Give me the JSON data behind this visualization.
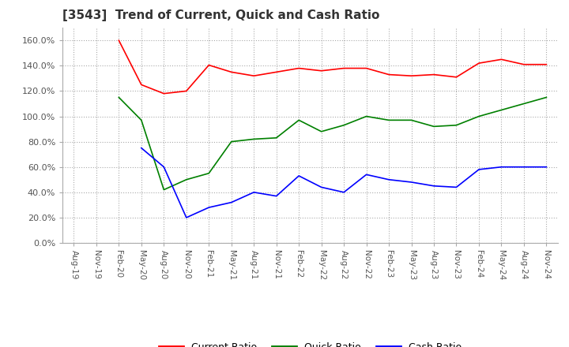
{
  "title": "[3543]  Trend of Current, Quick and Cash Ratio",
  "x_labels": [
    "Aug-19",
    "Nov-19",
    "Feb-20",
    "May-20",
    "Aug-20",
    "Nov-20",
    "Feb-21",
    "May-21",
    "Aug-21",
    "Nov-21",
    "Feb-22",
    "May-22",
    "Aug-22",
    "Nov-22",
    "Feb-23",
    "May-23",
    "Aug-23",
    "Nov-23",
    "Feb-24",
    "May-24",
    "Aug-24",
    "Nov-24"
  ],
  "current_ratio": [
    null,
    null,
    160.0,
    125.0,
    118.0,
    120.0,
    140.5,
    135.0,
    132.0,
    135.0,
    138.0,
    136.0,
    138.0,
    138.0,
    133.0,
    132.0,
    133.0,
    131.0,
    142.0,
    145.0,
    141.0,
    141.0
  ],
  "quick_ratio": [
    null,
    null,
    115.0,
    97.0,
    42.0,
    50.0,
    55.0,
    80.0,
    82.0,
    83.0,
    97.0,
    88.0,
    93.0,
    100.0,
    97.0,
    97.0,
    92.0,
    93.0,
    100.0,
    105.0,
    110.0,
    115.0
  ],
  "cash_ratio": [
    null,
    null,
    null,
    75.0,
    60.0,
    20.0,
    28.0,
    32.0,
    40.0,
    37.0,
    53.0,
    44.0,
    40.0,
    54.0,
    50.0,
    48.0,
    45.0,
    44.0,
    58.0,
    60.0,
    60.0,
    60.0
  ],
  "ylim": [
    0,
    170
  ],
  "yticks": [
    0,
    20,
    40,
    60,
    80,
    100,
    120,
    140,
    160
  ],
  "line_colors": {
    "current": "#ff0000",
    "quick": "#008000",
    "cash": "#0000ff"
  },
  "legend_labels": [
    "Current Ratio",
    "Quick Ratio",
    "Cash Ratio"
  ],
  "background_color": "#ffffff",
  "grid_color": "#aaaaaa"
}
